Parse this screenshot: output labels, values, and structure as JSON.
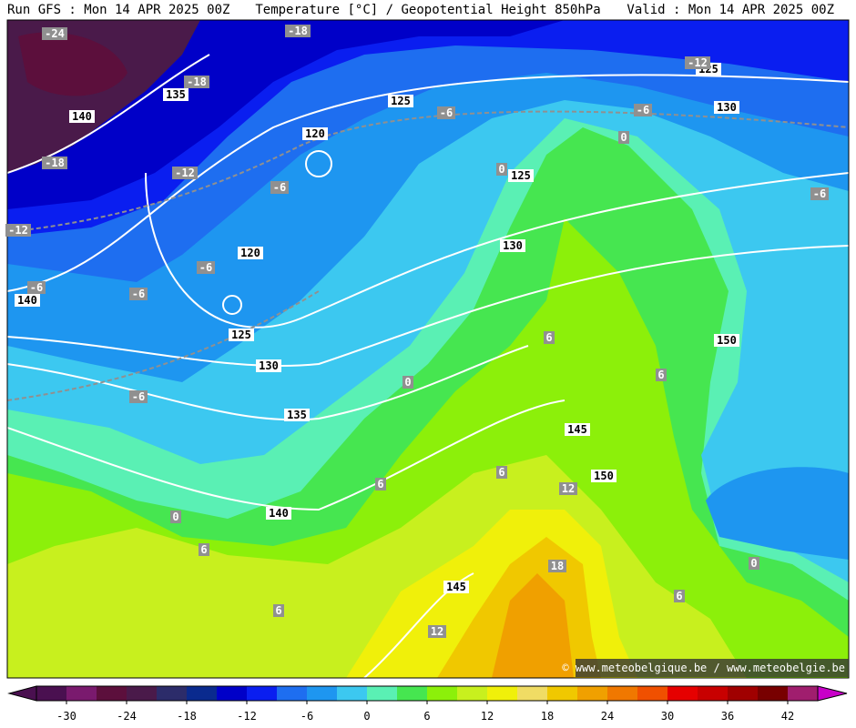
{
  "header": {
    "left": "Run GFS : Mon 14 APR 2025 00Z",
    "center": "Temperature [°C] / Geopotential Height 850hPa",
    "right": "Valid : Mon 14 APR 2025 00Z"
  },
  "map": {
    "height_labels": [
      "140",
      "135",
      "125",
      "130",
      "125",
      "120",
      "125",
      "120",
      "130",
      "140",
      "125",
      "130",
      "135",
      "150",
      "145",
      "150",
      "140",
      "145"
    ],
    "temperature_labels": [
      "-24",
      "-18",
      "-18",
      "-12",
      "-6",
      "-6",
      "-18",
      "-12",
      "-6",
      "-6",
      "-12",
      "-6",
      "-6",
      "-6",
      "-6",
      "0",
      "0",
      "6",
      "6",
      "0",
      "6",
      "6",
      "12",
      "0",
      "6",
      "18",
      "0",
      "6",
      "6",
      "12"
    ],
    "watermark": "© www.meteobelgique.be / www.meteobelgie.be"
  },
  "colorbar": {
    "range": [
      -33,
      45
    ],
    "ticks": [
      -30,
      -24,
      -18,
      -12,
      -6,
      0,
      6,
      12,
      18,
      24,
      30,
      36,
      42
    ],
    "colors": [
      "#4a1050",
      "#7a1a6e",
      "#5c0f3c",
      "#4a1a4a",
      "#2c2c6a",
      "#0a2a8e",
      "#0000c8",
      "#0a1ef0",
      "#1e6ef0",
      "#1e96f0",
      "#3cc8f0",
      "#5af0b4",
      "#46e650",
      "#8cf00a",
      "#c8f01e",
      "#f0f00a",
      "#f0dc64",
      "#f0c800",
      "#f0a000",
      "#f07800",
      "#f05000",
      "#e60000",
      "#c80000",
      "#a00000",
      "#780000",
      "#a01e6e"
    ]
  }
}
